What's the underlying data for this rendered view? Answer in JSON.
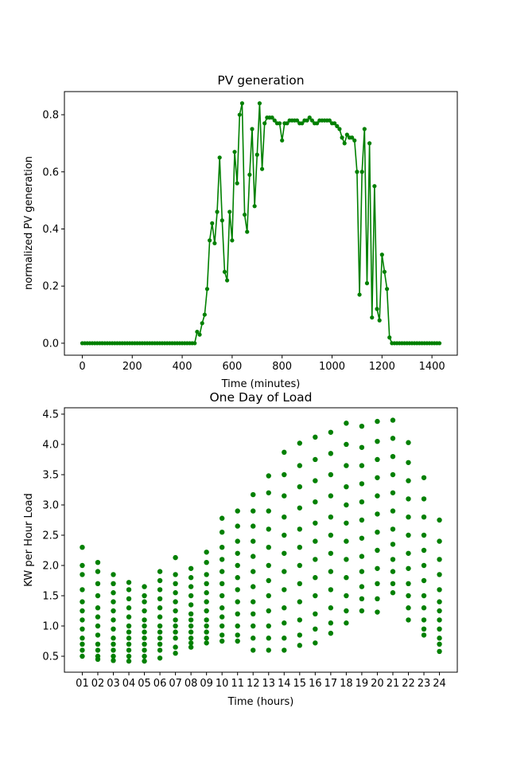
{
  "chart_data": [
    {
      "type": "line",
      "title": "PV generation",
      "x_label": "Time (minutes)",
      "y_label": "normalized PV generation",
      "color": "green",
      "marker": "circle",
      "x": [
        0,
        10,
        20,
        30,
        40,
        50,
        60,
        70,
        80,
        90,
        100,
        110,
        120,
        130,
        140,
        150,
        160,
        170,
        180,
        190,
        200,
        210,
        220,
        230,
        240,
        250,
        260,
        270,
        280,
        290,
        300,
        310,
        320,
        330,
        340,
        350,
        360,
        370,
        380,
        390,
        400,
        410,
        420,
        430,
        440,
        450,
        460,
        470,
        480,
        490,
        500,
        510,
        520,
        530,
        540,
        550,
        560,
        570,
        580,
        590,
        600,
        610,
        620,
        630,
        640,
        650,
        660,
        670,
        680,
        690,
        700,
        710,
        720,
        730,
        740,
        750,
        760,
        770,
        780,
        790,
        800,
        810,
        820,
        830,
        840,
        850,
        860,
        870,
        880,
        890,
        900,
        910,
        920,
        930,
        940,
        950,
        960,
        970,
        980,
        990,
        1000,
        1010,
        1020,
        1030,
        1040,
        1050,
        1060,
        1070,
        1080,
        1090,
        1100,
        1110,
        1120,
        1130,
        1140,
        1150,
        1160,
        1170,
        1180,
        1190,
        1200,
        1210,
        1220,
        1230,
        1240,
        1250,
        1260,
        1270,
        1280,
        1290,
        1300,
        1310,
        1320,
        1330,
        1340,
        1350,
        1360,
        1370,
        1380,
        1390,
        1400,
        1410,
        1420,
        1430
      ],
      "values": [
        0,
        0,
        0,
        0,
        0,
        0,
        0,
        0,
        0,
        0,
        0,
        0,
        0,
        0,
        0,
        0,
        0,
        0,
        0,
        0,
        0,
        0,
        0,
        0,
        0,
        0,
        0,
        0,
        0,
        0,
        0,
        0,
        0,
        0,
        0,
        0,
        0,
        0,
        0,
        0,
        0,
        0,
        0,
        0,
        0,
        0,
        0.04,
        0.03,
        0.07,
        0.1,
        0.19,
        0.36,
        0.42,
        0.35,
        0.46,
        0.65,
        0.43,
        0.25,
        0.22,
        0.46,
        0.36,
        0.67,
        0.56,
        0.8,
        0.84,
        0.45,
        0.39,
        0.59,
        0.75,
        0.48,
        0.66,
        0.84,
        0.61,
        0.77,
        0.79,
        0.79,
        0.79,
        0.78,
        0.77,
        0.77,
        0.71,
        0.77,
        0.77,
        0.78,
        0.78,
        0.78,
        0.78,
        0.77,
        0.77,
        0.78,
        0.78,
        0.79,
        0.78,
        0.77,
        0.77,
        0.78,
        0.78,
        0.78,
        0.78,
        0.78,
        0.77,
        0.77,
        0.76,
        0.75,
        0.72,
        0.7,
        0.73,
        0.72,
        0.72,
        0.71,
        0.6,
        0.17,
        0.6,
        0.75,
        0.21,
        0.7,
        0.09,
        0.55,
        0.12,
        0.08,
        0.31,
        0.25,
        0.19,
        0.02,
        0,
        0,
        0,
        0,
        0,
        0,
        0,
        0,
        0,
        0,
        0,
        0,
        0,
        0,
        0,
        0,
        0,
        0,
        0,
        0
      ],
      "xlim": [
        -71.5,
        1501.5
      ],
      "ylim": [
        -0.042,
        0.881
      ],
      "xticks": [
        0,
        200,
        400,
        600,
        800,
        1000,
        1200,
        1400
      ],
      "yticks": [
        {
          "value": 0,
          "label": "0.0"
        },
        0.2,
        0.4,
        0.6,
        0.8
      ]
    },
    {
      "type": "scatter",
      "title": "One Day of Load",
      "x_label": "Time (hours)",
      "y_label": "KW per Hour Load",
      "color": "green",
      "categories": [
        "01",
        "02",
        "03",
        "04",
        "05",
        "06",
        "07",
        "08",
        "09",
        "10",
        "11",
        "12",
        "13",
        "14",
        "15",
        "16",
        "17",
        "18",
        "19",
        "20",
        "21",
        "22",
        "23",
        "24"
      ],
      "values": [
        [
          2.3,
          2.0,
          1.85,
          1.6,
          1.4,
          1.25,
          1.1,
          0.95,
          0.8,
          0.7,
          0.6,
          0.5
        ],
        [
          2.05,
          1.9,
          1.7,
          1.5,
          1.3,
          1.15,
          1.0,
          0.85,
          0.7,
          0.6,
          0.5,
          0.45
        ],
        [
          1.85,
          1.7,
          1.55,
          1.4,
          1.25,
          1.1,
          0.95,
          0.8,
          0.7,
          0.6,
          0.5,
          0.43
        ],
        [
          1.72,
          1.6,
          1.45,
          1.3,
          1.15,
          1.0,
          0.9,
          0.8,
          0.7,
          0.6,
          0.5,
          0.42
        ],
        [
          1.65,
          1.5,
          1.4,
          1.25,
          1.1,
          1.0,
          0.9,
          0.8,
          0.7,
          0.6,
          0.5,
          0.42
        ],
        [
          1.9,
          1.75,
          1.6,
          1.45,
          1.3,
          1.15,
          1.0,
          0.9,
          0.8,
          0.7,
          0.6,
          0.47
        ],
        [
          2.13,
          1.85,
          1.7,
          1.55,
          1.4,
          1.25,
          1.1,
          1.0,
          0.9,
          0.8,
          0.65,
          0.55
        ],
        [
          1.95,
          1.8,
          1.65,
          1.5,
          1.35,
          1.2,
          1.1,
          1.0,
          0.9,
          0.8,
          0.72,
          0.65
        ],
        [
          2.22,
          2.05,
          1.85,
          1.7,
          1.55,
          1.4,
          1.25,
          1.1,
          1.0,
          0.9,
          0.8,
          0.72
        ],
        [
          2.78,
          2.55,
          2.3,
          2.1,
          1.9,
          1.7,
          1.5,
          1.3,
          1.15,
          1.0,
          0.85,
          0.75
        ],
        [
          2.9,
          2.65,
          2.4,
          2.2,
          2.0,
          1.8,
          1.6,
          1.4,
          1.2,
          1.0,
          0.85,
          0.75
        ],
        [
          3.17,
          2.9,
          2.65,
          2.4,
          2.15,
          1.9,
          1.65,
          1.4,
          1.2,
          1.0,
          0.8,
          0.6
        ],
        [
          3.48,
          3.2,
          2.9,
          2.6,
          2.3,
          2.0,
          1.75,
          1.5,
          1.25,
          1.0,
          0.8,
          0.6
        ],
        [
          3.87,
          3.5,
          3.15,
          2.8,
          2.5,
          2.2,
          1.9,
          1.6,
          1.3,
          1.05,
          0.8,
          0.6
        ],
        [
          4.02,
          3.65,
          3.3,
          2.95,
          2.6,
          2.3,
          2.0,
          1.7,
          1.4,
          1.1,
          0.85,
          0.68
        ],
        [
          4.12,
          3.75,
          3.4,
          3.05,
          2.7,
          2.4,
          2.1,
          1.8,
          1.5,
          1.2,
          0.95,
          0.72
        ],
        [
          4.2,
          3.85,
          3.5,
          3.15,
          2.8,
          2.5,
          2.2,
          1.9,
          1.6,
          1.3,
          1.05,
          0.88
        ],
        [
          4.35,
          4.0,
          3.65,
          3.3,
          3.0,
          2.7,
          2.4,
          2.1,
          1.8,
          1.5,
          1.25,
          1.05
        ],
        [
          4.3,
          3.95,
          3.65,
          3.35,
          3.05,
          2.75,
          2.45,
          2.15,
          1.9,
          1.65,
          1.45,
          1.25
        ],
        [
          4.38,
          4.05,
          3.75,
          3.45,
          3.15,
          2.85,
          2.55,
          2.25,
          1.95,
          1.7,
          1.45,
          1.23
        ],
        [
          4.4,
          4.1,
          3.8,
          3.5,
          3.2,
          2.9,
          2.6,
          2.35,
          2.1,
          1.9,
          1.7,
          1.55
        ],
        [
          4.03,
          3.7,
          3.4,
          3.1,
          2.8,
          2.5,
          2.2,
          1.95,
          1.7,
          1.5,
          1.3,
          1.1
        ],
        [
          3.45,
          3.1,
          2.8,
          2.5,
          2.25,
          2.0,
          1.75,
          1.5,
          1.3,
          1.1,
          0.95,
          0.85
        ],
        [
          2.75,
          2.4,
          2.1,
          1.85,
          1.6,
          1.4,
          1.25,
          1.1,
          0.95,
          0.8,
          0.7,
          0.58
        ]
      ],
      "ylim": [
        0.237,
        4.605
      ],
      "yticks": [
        0.5,
        {
          "value": 1,
          "label": "1.0"
        },
        1.5,
        {
          "value": 2,
          "label": "2.0"
        },
        2.5,
        {
          "value": 3,
          "label": "3.0"
        },
        3.5,
        {
          "value": 4,
          "label": "4.0"
        },
        4.5
      ]
    }
  ]
}
